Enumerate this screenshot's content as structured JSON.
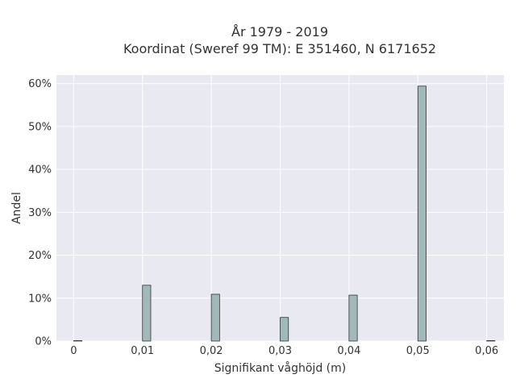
{
  "chart_data": {
    "type": "bar",
    "title_lines": [
      "År 1979 - 2019",
      "Koordinat (Sweref 99 TM): E 351460, N 6171652"
    ],
    "xlabel": "Signifikant våghöjd (m)",
    "ylabel": "Andel",
    "xlim": [
      -0.0025,
      0.0625
    ],
    "ylim": [
      0,
      0.62
    ],
    "x_ticks": [
      0,
      0.01,
      0.02,
      0.03,
      0.04,
      0.05,
      0.06
    ],
    "x_tick_labels": [
      "0",
      "0,01",
      "0,02",
      "0,03",
      "0,04",
      "0,05",
      "0,06"
    ],
    "y_ticks": [
      0,
      0.1,
      0.2,
      0.3,
      0.4,
      0.5,
      0.6
    ],
    "y_tick_labels": [
      "0%",
      "10%",
      "20%",
      "30%",
      "40%",
      "50%",
      "60%"
    ],
    "bin_width": 0.0012,
    "bars": [
      {
        "x": 0.0,
        "value": 0.001
      },
      {
        "x": 0.01,
        "value": 0.13
      },
      {
        "x": 0.02,
        "value": 0.109
      },
      {
        "x": 0.03,
        "value": 0.055
      },
      {
        "x": 0.04,
        "value": 0.107
      },
      {
        "x": 0.05,
        "value": 0.594
      },
      {
        "x": 0.06,
        "value": 0.001
      }
    ],
    "grid": true,
    "bar_color": "#a2b9b9",
    "bar_edge_color": "#333333",
    "plot_background": "#e9e9f1",
    "grid_color": "#ffffff"
  }
}
